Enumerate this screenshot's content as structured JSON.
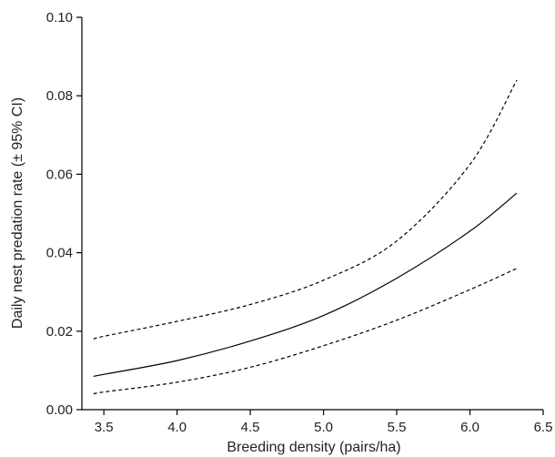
{
  "chart_data": {
    "type": "line",
    "title": "",
    "xlabel": "Breeding density (pairs/ha)",
    "ylabel": "Daily nest predation rate (± 95% CI)",
    "xlim": [
      3.35,
      6.5
    ],
    "ylim": [
      0.0,
      0.1
    ],
    "xticks": [
      "3.5",
      "4.0",
      "4.5",
      "5.0",
      "5.5",
      "6.0",
      "6.5"
    ],
    "yticks": [
      "0.00",
      "0.02",
      "0.04",
      "0.06",
      "0.08",
      "0.10"
    ],
    "grid": false,
    "series": [
      {
        "style": "solid",
        "color": "#000000",
        "x": [
          3.43,
          3.5,
          4.0,
          4.5,
          5.0,
          5.5,
          6.0,
          6.32
        ],
        "y": [
          0.0085,
          0.009,
          0.0125,
          0.0175,
          0.024,
          0.0335,
          0.0455,
          0.0552
        ]
      },
      {
        "style": "dashed",
        "color": "#000000",
        "x": [
          3.43,
          3.5,
          4.0,
          4.5,
          5.0,
          5.5,
          6.0,
          6.32
        ],
        "y": [
          0.018,
          0.0187,
          0.0225,
          0.0268,
          0.033,
          0.043,
          0.0625,
          0.084
        ]
      },
      {
        "style": "dashed",
        "color": "#000000",
        "x": [
          3.43,
          3.5,
          4.0,
          4.5,
          5.0,
          5.5,
          6.0,
          6.32
        ],
        "y": [
          0.004,
          0.0045,
          0.007,
          0.0108,
          0.0163,
          0.0228,
          0.0306,
          0.036
        ]
      }
    ]
  }
}
